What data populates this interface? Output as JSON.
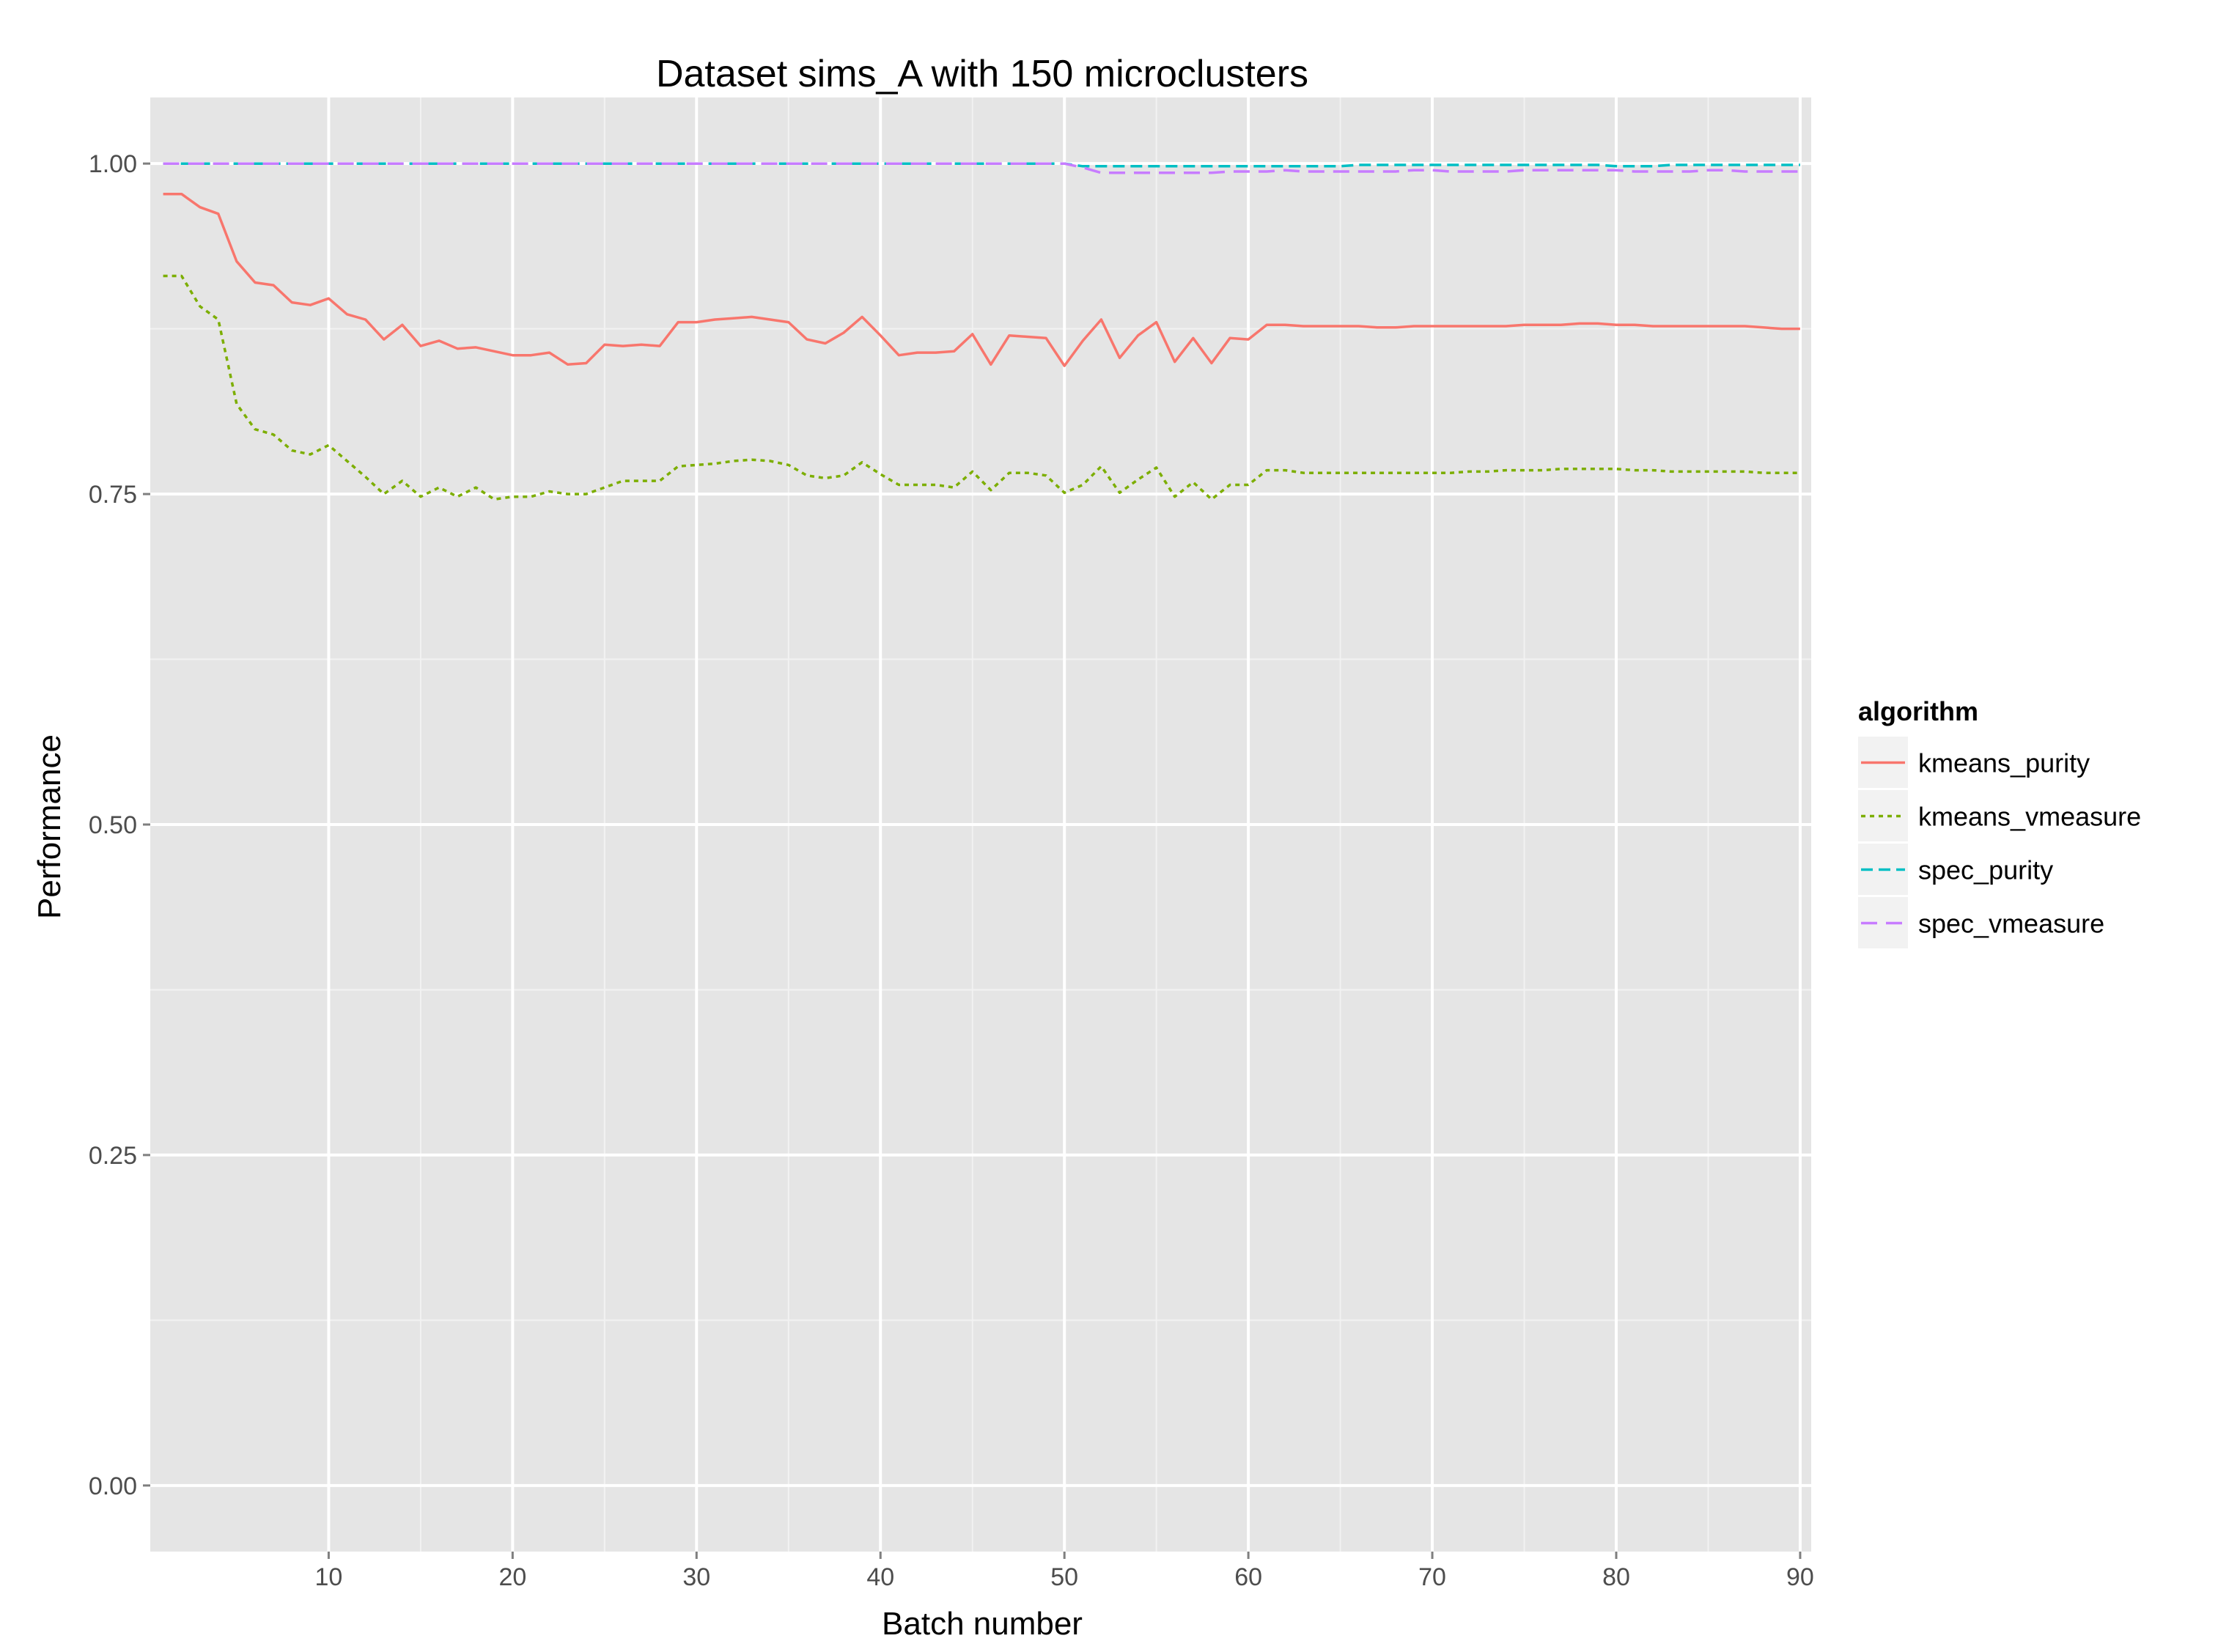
{
  "chart_data": {
    "type": "line",
    "title": "Dataset sims_A with 150 microclusters",
    "xlabel": "Batch number",
    "ylabel": "Performance",
    "xlim": [
      0.3,
      90.6
    ],
    "ylim": [
      -0.05,
      1.05
    ],
    "x_ticks": [
      10,
      20,
      30,
      40,
      50,
      60,
      70,
      80,
      90
    ],
    "x_tick_labels": [
      "10",
      "20",
      "30",
      "40",
      "50",
      "60",
      "70",
      "80",
      "90"
    ],
    "y_ticks": [
      0.0,
      0.25,
      0.5,
      0.75,
      1.0
    ],
    "y_tick_labels": [
      "0.00",
      "0.25",
      "0.50",
      "0.75",
      "1.00"
    ],
    "grid": true,
    "legend": {
      "title": "algorithm",
      "position": "right"
    },
    "x": [
      1,
      2,
      3,
      4,
      5,
      6,
      7,
      8,
      9,
      10,
      11,
      12,
      13,
      14,
      15,
      16,
      17,
      18,
      19,
      20,
      21,
      22,
      23,
      24,
      25,
      26,
      27,
      28,
      29,
      30,
      31,
      32,
      33,
      34,
      35,
      36,
      37,
      38,
      39,
      40,
      41,
      42,
      43,
      44,
      45,
      46,
      47,
      48,
      49,
      50,
      51,
      52,
      53,
      54,
      55,
      56,
      57,
      58,
      59,
      60,
      61,
      62,
      63,
      64,
      65,
      66,
      67,
      68,
      69,
      70,
      71,
      72,
      73,
      74,
      75,
      76,
      77,
      78,
      79,
      80,
      81,
      82,
      83,
      84,
      85,
      86,
      87,
      88,
      89,
      90
    ],
    "series": [
      {
        "name": "kmeans_purity",
        "color": "#F8766D",
        "dash": "solid",
        "values": [
          0.977,
          0.977,
          0.967,
          0.962,
          0.926,
          0.91,
          0.908,
          0.895,
          0.893,
          0.898,
          0.886,
          0.882,
          0.867,
          0.878,
          0.862,
          0.866,
          0.86,
          0.861,
          0.858,
          0.855,
          0.855,
          0.857,
          0.848,
          0.849,
          0.863,
          0.862,
          0.863,
          0.862,
          0.88,
          0.88,
          0.882,
          0.883,
          0.884,
          0.882,
          0.88,
          0.867,
          0.864,
          0.872,
          0.884,
          0.87,
          0.855,
          0.857,
          0.857,
          0.858,
          0.871,
          0.848,
          0.87,
          0.869,
          0.868,
          0.847,
          0.866,
          0.882,
          0.853,
          0.87,
          0.88,
          0.85,
          0.868,
          0.849,
          0.868,
          0.867,
          0.878,
          0.878,
          0.877,
          0.877,
          0.877,
          0.877,
          0.876,
          0.876,
          0.877,
          0.877,
          0.877,
          0.877,
          0.877,
          0.877,
          0.878,
          0.878,
          0.878,
          0.879,
          0.879,
          0.878,
          0.878,
          0.877,
          0.877,
          0.877,
          0.877,
          0.877,
          0.877,
          0.876,
          0.875,
          0.875
        ]
      },
      {
        "name": "kmeans_vmeasure",
        "color": "#7CAE00",
        "dash": "dotted",
        "values": [
          0.915,
          0.915,
          0.892,
          0.882,
          0.818,
          0.799,
          0.795,
          0.783,
          0.78,
          0.787,
          0.775,
          0.763,
          0.75,
          0.76,
          0.748,
          0.755,
          0.748,
          0.755,
          0.746,
          0.748,
          0.748,
          0.752,
          0.75,
          0.75,
          0.755,
          0.76,
          0.76,
          0.76,
          0.771,
          0.772,
          0.773,
          0.775,
          0.776,
          0.775,
          0.772,
          0.764,
          0.762,
          0.764,
          0.774,
          0.765,
          0.757,
          0.757,
          0.757,
          0.755,
          0.767,
          0.753,
          0.766,
          0.766,
          0.764,
          0.751,
          0.757,
          0.771,
          0.751,
          0.761,
          0.77,
          0.748,
          0.759,
          0.746,
          0.757,
          0.757,
          0.768,
          0.768,
          0.766,
          0.766,
          0.766,
          0.766,
          0.766,
          0.766,
          0.766,
          0.766,
          0.766,
          0.767,
          0.767,
          0.768,
          0.768,
          0.768,
          0.769,
          0.769,
          0.769,
          0.769,
          0.768,
          0.768,
          0.767,
          0.767,
          0.767,
          0.767,
          0.767,
          0.766,
          0.766,
          0.766
        ]
      },
      {
        "name": "spec_purity",
        "color": "#00BFC4",
        "dash": "dashed",
        "values": [
          1.0,
          1.0,
          1.0,
          1.0,
          1.0,
          1.0,
          1.0,
          1.0,
          1.0,
          1.0,
          1.0,
          1.0,
          1.0,
          1.0,
          1.0,
          1.0,
          1.0,
          1.0,
          1.0,
          1.0,
          1.0,
          1.0,
          1.0,
          1.0,
          1.0,
          1.0,
          1.0,
          1.0,
          1.0,
          1.0,
          1.0,
          1.0,
          1.0,
          1.0,
          1.0,
          1.0,
          1.0,
          1.0,
          1.0,
          1.0,
          1.0,
          1.0,
          1.0,
          1.0,
          1.0,
          1.0,
          1.0,
          1.0,
          1.0,
          1.0,
          0.998,
          0.998,
          0.998,
          0.998,
          0.998,
          0.998,
          0.998,
          0.998,
          0.998,
          0.998,
          0.998,
          0.998,
          0.998,
          0.998,
          0.998,
          0.999,
          0.999,
          0.999,
          0.999,
          0.999,
          0.999,
          0.999,
          0.999,
          0.999,
          0.999,
          0.999,
          0.999,
          0.999,
          0.999,
          0.998,
          0.998,
          0.998,
          0.999,
          0.999,
          0.999,
          0.999,
          0.999,
          0.999,
          0.999,
          0.999
        ]
      },
      {
        "name": "spec_vmeasure",
        "color": "#C77CFF",
        "dash": "longdash",
        "values": [
          1.0,
          1.0,
          1.0,
          1.0,
          1.0,
          1.0,
          1.0,
          1.0,
          1.0,
          1.0,
          1.0,
          1.0,
          1.0,
          1.0,
          1.0,
          1.0,
          1.0,
          1.0,
          1.0,
          1.0,
          1.0,
          1.0,
          1.0,
          1.0,
          1.0,
          1.0,
          1.0,
          1.0,
          1.0,
          1.0,
          1.0,
          1.0,
          1.0,
          1.0,
          1.0,
          1.0,
          1.0,
          1.0,
          1.0,
          1.0,
          1.0,
          1.0,
          1.0,
          1.0,
          1.0,
          1.0,
          1.0,
          1.0,
          1.0,
          1.0,
          0.997,
          0.993,
          0.993,
          0.993,
          0.993,
          0.993,
          0.993,
          0.993,
          0.994,
          0.994,
          0.994,
          0.995,
          0.994,
          0.994,
          0.994,
          0.994,
          0.994,
          0.994,
          0.995,
          0.995,
          0.994,
          0.994,
          0.994,
          0.994,
          0.995,
          0.995,
          0.995,
          0.995,
          0.995,
          0.995,
          0.994,
          0.994,
          0.994,
          0.994,
          0.995,
          0.995,
          0.994,
          0.994,
          0.994,
          0.994
        ]
      }
    ]
  }
}
